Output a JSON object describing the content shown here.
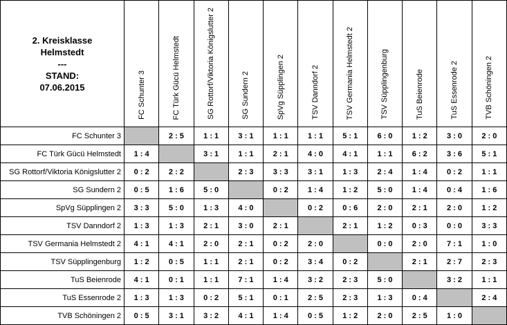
{
  "header": {
    "title_line1": "2. Kreisklasse",
    "title_line2": "Helmstedt",
    "separator": "---",
    "stand_label": "STAND:",
    "stand_date": "07.06.2015"
  },
  "teams": [
    "FC Schunter 3",
    "FC Türk Gücü Helmstedt",
    "SG Rottorf/Viktoria Königslutter 2",
    "SG Sundern 2",
    "SpVg Süpplingen 2",
    "TSV Danndorf 2",
    "TSV Germania Helmstedt 2",
    "TSV Süpplingenburg",
    "TuS Beienrode",
    "TuS Essenrode 2",
    "TVB Schöningen 2"
  ],
  "results": [
    [
      null,
      "2 : 5",
      "1 : 1",
      "3 : 1",
      "1 : 1",
      "1 : 1",
      "5 : 1",
      "6 : 0",
      "1 : 2",
      "3 : 0",
      "2 : 0"
    ],
    [
      "1 : 4",
      null,
      "3 : 1",
      "1 : 1",
      "2 : 1",
      "4 : 0",
      "4 : 1",
      "1 : 1",
      "6 : 2",
      "3 : 6",
      "5 : 1"
    ],
    [
      "0 : 2",
      "2 : 2",
      null,
      "2 : 3",
      "3 : 3",
      "3 : 1",
      "1 : 3",
      "2 : 4",
      "1 : 4",
      "0 : 2",
      "1 : 1"
    ],
    [
      "0 : 5",
      "1 : 6",
      "5 : 0",
      null,
      "0 : 2",
      "1 : 4",
      "1 : 2",
      "5 : 0",
      "1 : 4",
      "0 : 4",
      "1 : 6"
    ],
    [
      "3 : 3",
      "5 : 0",
      "1 : 3",
      "4 : 0",
      null,
      "0 : 2",
      "0 : 6",
      "2 : 0",
      "2 : 1",
      "2 : 0",
      "1 : 2"
    ],
    [
      "1 : 3",
      "1 : 3",
      "2 : 1",
      "3 : 0",
      "2 : 1",
      null,
      "2 : 1",
      "1 : 2",
      "0 : 3",
      "0 : 0",
      "3 : 3"
    ],
    [
      "4 : 1",
      "4 : 1",
      "2 : 0",
      "2 : 1",
      "0 : 2",
      "2 : 0",
      null,
      "0 : 0",
      "2 : 0",
      "7 : 1",
      "1 : 0"
    ],
    [
      "1 : 2",
      "0 : 5",
      "1 : 1",
      "2 : 1",
      "0 : 2",
      "3 : 4",
      "0 : 2",
      null,
      "2 : 1",
      "2 : 7",
      "2 : 3"
    ],
    [
      "4 : 1",
      "0 : 1",
      "1 : 1",
      "7 : 1",
      "1 : 4",
      "3 : 2",
      "2 : 3",
      "5 : 0",
      null,
      "3 : 2",
      "1 : 1"
    ],
    [
      "1 : 3",
      "1 : 3",
      "0 : 2",
      "5 : 1",
      "0 : 1",
      "2 : 5",
      "2 : 3",
      "1 : 3",
      "0 : 4",
      null,
      "2 : 4"
    ],
    [
      "0 : 5",
      "3 : 1",
      "3 : 2",
      "4 : 1",
      "1 : 4",
      "0 : 5",
      "1 : 2",
      "2 : 0",
      "2 : 5",
      "1 : 0",
      null
    ]
  ],
  "colors": {
    "diagonal_fill": "#c0c0c0",
    "grid_border": "#000000",
    "background": "#ffffff"
  }
}
